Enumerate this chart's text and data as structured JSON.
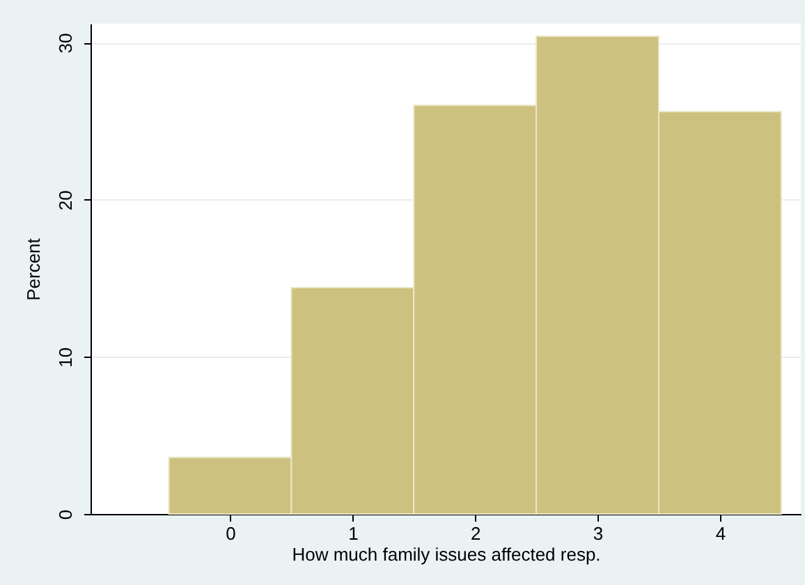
{
  "chart_data": {
    "type": "histogram",
    "xlabel": "How much family issues affected resp.",
    "ylabel": "Percent",
    "bins": [
      -0.5,
      0.5,
      1.5,
      2.5,
      3.5,
      4.5
    ],
    "values": [
      3.6,
      14.4,
      26.0,
      30.4,
      25.6
    ],
    "color": "#ccc17f",
    "xlim": [
      -1.14,
      4.66
    ],
    "xticks": [
      0,
      1,
      2,
      3,
      4
    ],
    "ylim": [
      0,
      31.2
    ],
    "yticks": [
      0,
      10,
      20,
      30
    ],
    "grid": "y"
  }
}
